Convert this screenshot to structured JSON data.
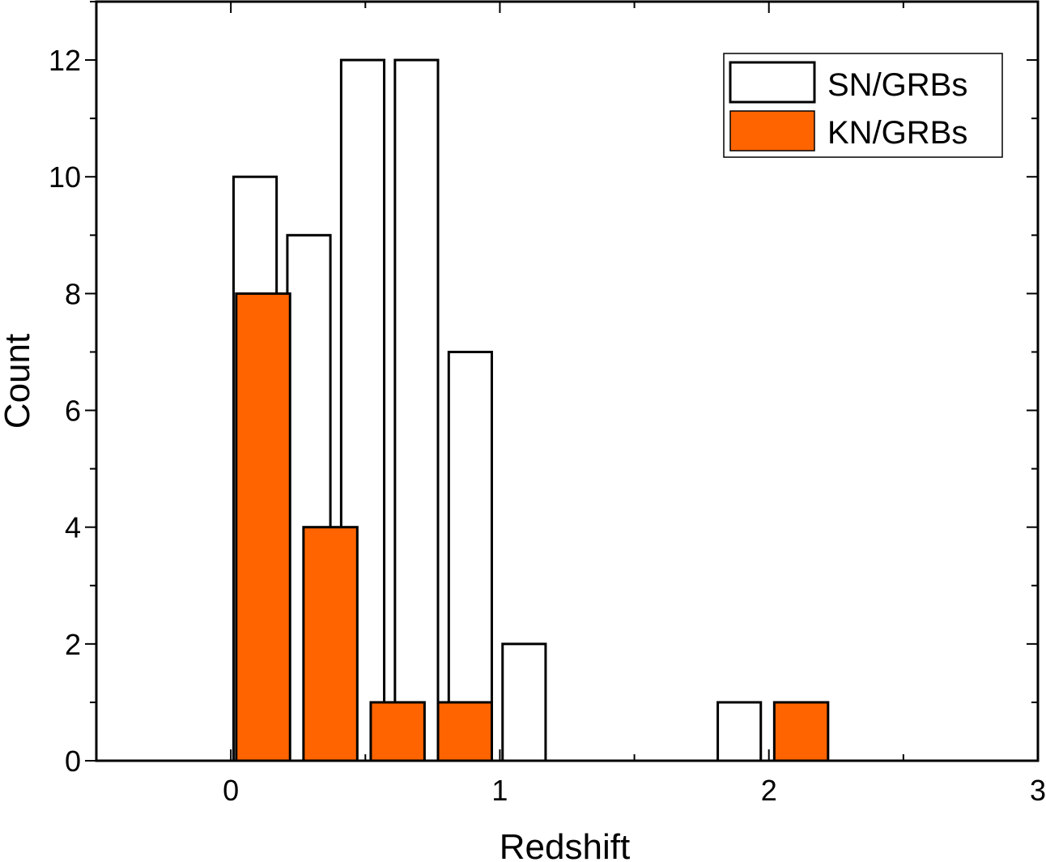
{
  "chart_data": {
    "type": "bar",
    "xlabel": "Redshift",
    "ylabel": "Count",
    "xlim": [
      -0.5,
      3
    ],
    "ylim": [
      0,
      13
    ],
    "x_ticks": [
      0,
      1,
      2,
      3
    ],
    "y_ticks": [
      0,
      2,
      4,
      6,
      8,
      10,
      12
    ],
    "x_tick_labels": [
      "0",
      "1",
      "2",
      "3"
    ],
    "y_tick_labels": [
      "0",
      "2",
      "4",
      "6",
      "8",
      "10",
      "12"
    ],
    "grid": false,
    "legend_position": "top-right",
    "series": [
      {
        "name": "SN/GRBs",
        "fill": "#ffffff",
        "stroke": "#000000",
        "bars": [
          {
            "x0": 0.01,
            "x1": 0.17,
            "value": 10
          },
          {
            "x0": 0.21,
            "x1": 0.37,
            "value": 9
          },
          {
            "x0": 0.41,
            "x1": 0.57,
            "value": 12
          },
          {
            "x0": 0.61,
            "x1": 0.77,
            "value": 12
          },
          {
            "x0": 0.81,
            "x1": 0.97,
            "value": 7
          },
          {
            "x0": 1.01,
            "x1": 1.17,
            "value": 2
          },
          {
            "x0": 1.81,
            "x1": 1.97,
            "value": 1
          }
        ]
      },
      {
        "name": "KN/GRBs",
        "fill": "#ff6400",
        "stroke": "#000000",
        "bars": [
          {
            "x0": 0.02,
            "x1": 0.22,
            "value": 8
          },
          {
            "x0": 0.27,
            "x1": 0.47,
            "value": 4
          },
          {
            "x0": 0.52,
            "x1": 0.72,
            "value": 1
          },
          {
            "x0": 0.77,
            "x1": 0.97,
            "value": 1
          },
          {
            "x0": 2.02,
            "x1": 2.22,
            "value": 1
          }
        ]
      }
    ]
  }
}
